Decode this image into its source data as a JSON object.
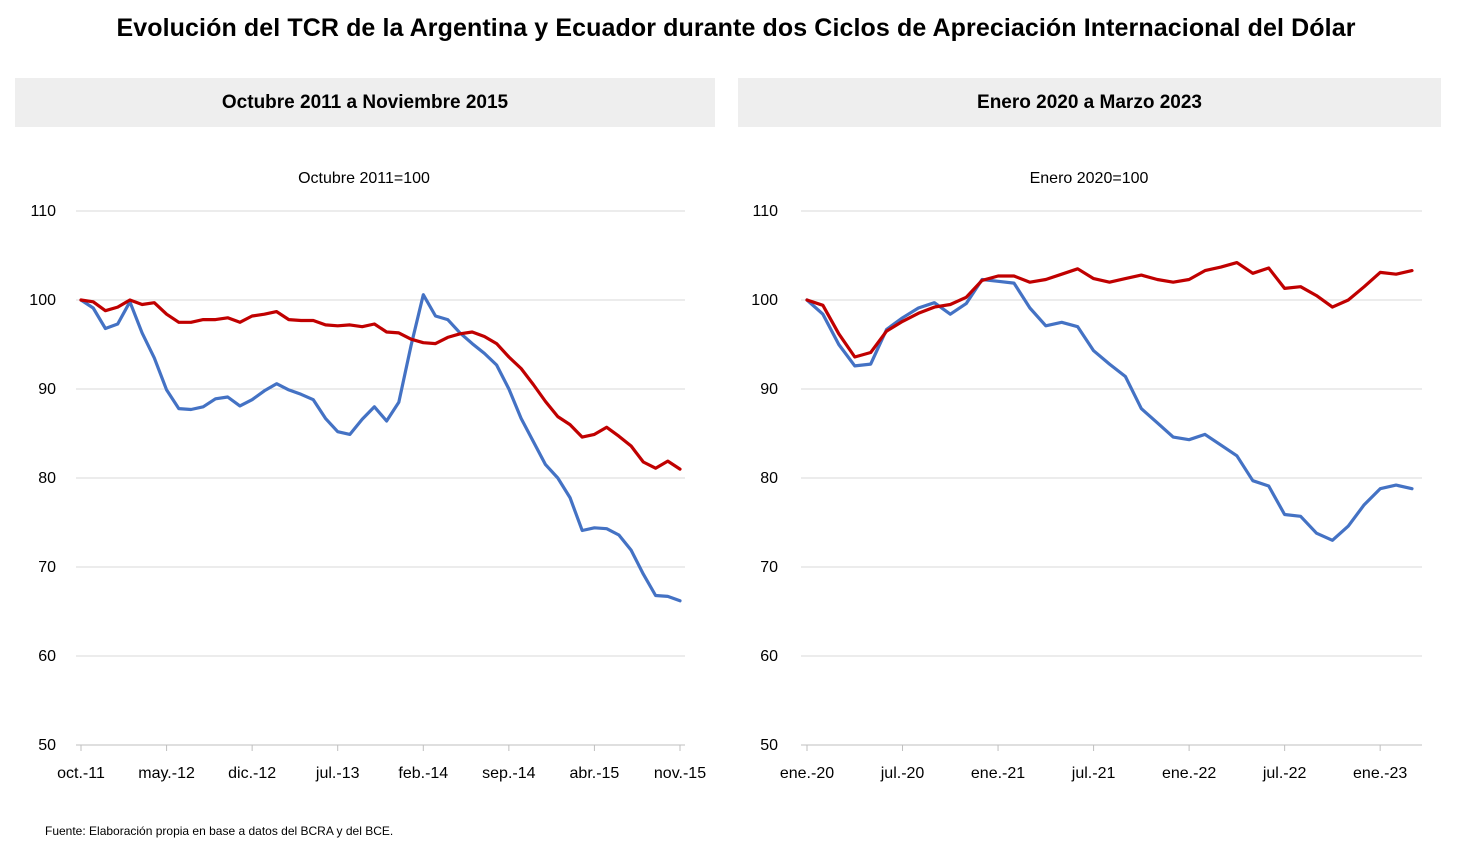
{
  "title": "Evolución del TCR de la Argentina y Ecuador durante dos Ciclos de Apreciación Internacional del Dólar",
  "source": "Fuente: Elaboración propia en base a datos del BCRA y del BCE.",
  "colors": {
    "argentina_series": "#4472C4",
    "ecuador_series": "#C00000",
    "header_bg": "#EEEEEE",
    "grid": "#D9D9D9"
  },
  "chart_data": [
    {
      "type": "line",
      "title": "Octubre 2011 a Noviembre 2015",
      "subtitle": "Octubre 2011=100",
      "xlabel": "",
      "ylabel": "",
      "ylim": [
        50,
        110
      ],
      "y_ticks": [
        "50",
        "60",
        "70",
        "80",
        "90",
        "100",
        "110"
      ],
      "grid": true,
      "legend": "none",
      "x_tick_labels": [
        "oct.-11",
        "may.-12",
        "dic.-12",
        "jul.-13",
        "feb.-14",
        "sep.-14",
        "abr.-15",
        "nov.-15"
      ],
      "x_tick_index": [
        0,
        7,
        14,
        21,
        28,
        35,
        42,
        49
      ],
      "x": [
        "oct.-11",
        "nov.-11",
        "dic.-11",
        "ene.-12",
        "feb.-12",
        "mar.-12",
        "abr.-12",
        "may.-12",
        "jun.-12",
        "jul.-12",
        "ago.-12",
        "sep.-12",
        "oct.-12",
        "nov.-12",
        "dic.-12",
        "ene.-13",
        "feb.-13",
        "mar.-13",
        "abr.-13",
        "may.-13",
        "jun.-13",
        "jul.-13",
        "ago.-13",
        "sep.-13",
        "oct.-13",
        "nov.-13",
        "dic.-13",
        "ene.-14",
        "feb.-14",
        "mar.-14",
        "abr.-14",
        "may.-14",
        "jun.-14",
        "jul.-14",
        "ago.-14",
        "sep.-14",
        "oct.-14",
        "nov.-14",
        "dic.-14",
        "ene.-15",
        "feb.-15",
        "mar.-15",
        "abr.-15",
        "may.-15",
        "jun.-15",
        "jul.-15",
        "ago.-15",
        "sep.-15",
        "oct.-15",
        "nov.-15"
      ],
      "series": [
        {
          "color": "#4472C4",
          "values": [
            100,
            99.1,
            96.8,
            97.3,
            99.8,
            96.3,
            93.5,
            89.9,
            87.8,
            87.7,
            88,
            88.9,
            89.1,
            88.1,
            88.8,
            89.8,
            90.6,
            89.9,
            89.4,
            88.8,
            86.7,
            85.2,
            84.9,
            86.6,
            88,
            86.4,
            88.5,
            94.9,
            100.6,
            98.2,
            97.8,
            96.3,
            95.1,
            94,
            92.7,
            90,
            86.7,
            84.1,
            81.5,
            80,
            77.8,
            74.1,
            74.4,
            74.3,
            73.6,
            71.9,
            69.2,
            66.8,
            66.7,
            66.2
          ]
        },
        {
          "color": "#C00000",
          "values": [
            100,
            99.8,
            98.8,
            99.2,
            100,
            99.5,
            99.7,
            98.4,
            97.5,
            97.5,
            97.8,
            97.8,
            98,
            97.5,
            98.2,
            98.4,
            98.7,
            97.8,
            97.7,
            97.7,
            97.2,
            97.1,
            97.2,
            97,
            97.3,
            96.4,
            96.3,
            95.6,
            95.2,
            95.1,
            95.8,
            96.2,
            96.4,
            95.9,
            95.1,
            93.6,
            92.3,
            90.5,
            88.6,
            86.9,
            86,
            84.6,
            84.9,
            85.7,
            84.7,
            83.6,
            81.8,
            81.1,
            81.9,
            81
          ]
        }
      ]
    },
    {
      "type": "line",
      "title": "Enero 2020 a Marzo 2023",
      "subtitle": "Enero 2020=100",
      "xlabel": "",
      "ylabel": "",
      "ylim": [
        50,
        110
      ],
      "y_ticks": [
        "50",
        "60",
        "70",
        "80",
        "90",
        "100",
        "110"
      ],
      "grid": true,
      "legend": "none",
      "x_tick_labels": [
        "ene.-20",
        "jul.-20",
        "ene.-21",
        "jul.-21",
        "ene.-22",
        "jul.-22",
        "ene.-23"
      ],
      "x_tick_index": [
        0,
        6,
        12,
        18,
        24,
        30,
        36
      ],
      "x": [
        "ene.-20",
        "feb.-20",
        "mar.-20",
        "abr.-20",
        "may.-20",
        "jun.-20",
        "jul.-20",
        "ago.-20",
        "sep.-20",
        "oct.-20",
        "nov.-20",
        "dic.-20",
        "ene.-21",
        "feb.-21",
        "mar.-21",
        "abr.-21",
        "may.-21",
        "jun.-21",
        "jul.-21",
        "ago.-21",
        "sep.-21",
        "oct.-21",
        "nov.-21",
        "dic.-21",
        "ene.-22",
        "feb.-22",
        "mar.-22",
        "abr.-22",
        "may.-22",
        "jun.-22",
        "jul.-22",
        "ago.-22",
        "sep.-22",
        "oct.-22",
        "nov.-22",
        "dic.-22",
        "ene.-23",
        "feb.-23",
        "mar.-23"
      ],
      "series": [
        {
          "color": "#4472C4",
          "values": [
            100,
            98.4,
            95,
            92.6,
            92.8,
            96.7,
            98,
            99.1,
            99.7,
            98.4,
            99.6,
            102.3,
            102.1,
            101.9,
            99.1,
            97.1,
            97.5,
            97,
            94.3,
            92.8,
            91.4,
            87.8,
            86.2,
            84.6,
            84.3,
            84.9,
            83.7,
            82.5,
            79.7,
            79.1,
            75.9,
            75.7,
            73.8,
            73,
            74.6,
            77,
            78.8,
            79.2,
            78.8
          ]
        },
        {
          "color": "#C00000",
          "values": [
            100,
            99.4,
            96.2,
            93.6,
            94.1,
            96.5,
            97.6,
            98.5,
            99.2,
            99.5,
            100.3,
            102.2,
            102.7,
            102.7,
            102,
            102.3,
            102.9,
            103.5,
            102.4,
            102,
            102.4,
            102.8,
            102.3,
            102,
            102.3,
            103.3,
            103.7,
            104.2,
            103,
            103.6,
            101.3,
            101.5,
            100.5,
            99.2,
            100,
            101.5,
            103.1,
            102.9,
            103.3
          ]
        }
      ]
    }
  ]
}
